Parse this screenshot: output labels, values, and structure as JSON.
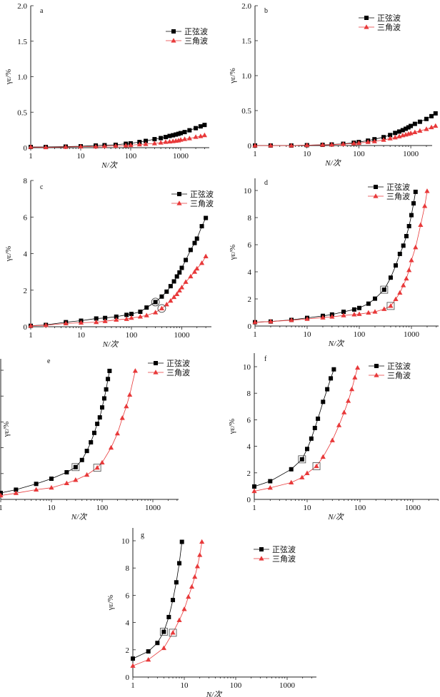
{
  "figure": {
    "legend_sine": "正弦波",
    "legend_triangle": "三角波",
    "xlabel": "N/次",
    "ylabel": "γε/%",
    "colors": {
      "sine": "#000000",
      "triangle": "#e8393a"
    }
  },
  "chart_data": [
    {
      "panel": "a",
      "type": "line",
      "xscale": "log",
      "xlim": [
        1,
        3500
      ],
      "ylim": [
        0,
        2.0
      ],
      "xticks": [
        "1",
        "10",
        "100",
        "1000"
      ],
      "yticks": [
        "0",
        "0.5",
        "1.0",
        "1.5",
        "2.0"
      ],
      "ytick_values": [
        0,
        0.5,
        1,
        1.5,
        2
      ],
      "legend": "top-right",
      "series": [
        {
          "name": "正弦波",
          "x": [
            1,
            2,
            5,
            10,
            20,
            30,
            50,
            80,
            100,
            150,
            200,
            300,
            400,
            500,
            600,
            700,
            800,
            900,
            1000,
            1200,
            1500,
            2000,
            2500,
            3000
          ],
          "y": [
            0.01,
            0.01,
            0.015,
            0.02,
            0.03,
            0.035,
            0.04,
            0.055,
            0.06,
            0.08,
            0.095,
            0.12,
            0.135,
            0.15,
            0.165,
            0.175,
            0.185,
            0.195,
            0.205,
            0.22,
            0.245,
            0.275,
            0.3,
            0.32
          ]
        },
        {
          "name": "三角波",
          "x": [
            1,
            2,
            5,
            10,
            20,
            30,
            50,
            80,
            100,
            150,
            200,
            300,
            400,
            500,
            600,
            700,
            800,
            900,
            1000,
            1200,
            1500,
            2000,
            2500,
            3000
          ],
          "y": [
            0.01,
            0.005,
            0.01,
            0.015,
            0.015,
            0.02,
            0.025,
            0.03,
            0.035,
            0.045,
            0.05,
            0.06,
            0.07,
            0.08,
            0.085,
            0.09,
            0.095,
            0.1,
            0.11,
            0.12,
            0.13,
            0.15,
            0.16,
            0.175
          ]
        }
      ]
    },
    {
      "panel": "b",
      "type": "line",
      "xscale": "log",
      "xlim": [
        1,
        3500
      ],
      "ylim": [
        0,
        2.0
      ],
      "xticks": [
        "1",
        "10",
        "100",
        "1000"
      ],
      "yticks": [
        "0",
        "0.5",
        "1.0",
        "1.5",
        "2.0"
      ],
      "ytick_values": [
        0,
        0.5,
        1,
        1.5,
        2
      ],
      "legend": "top-right",
      "series": [
        {
          "name": "正弦波",
          "x": [
            1,
            2,
            5,
            10,
            20,
            30,
            50,
            80,
            100,
            150,
            200,
            300,
            400,
            500,
            600,
            700,
            800,
            900,
            1000,
            1200,
            1500,
            2000,
            2500,
            3000
          ],
          "y": [
            0,
            0,
            0,
            0.005,
            0.01,
            0.015,
            0.025,
            0.04,
            0.05,
            0.07,
            0.09,
            0.12,
            0.15,
            0.18,
            0.2,
            0.22,
            0.24,
            0.26,
            0.28,
            0.31,
            0.34,
            0.38,
            0.42,
            0.46
          ]
        },
        {
          "name": "三角波",
          "x": [
            1,
            2,
            5,
            10,
            20,
            30,
            50,
            80,
            100,
            150,
            200,
            300,
            400,
            500,
            600,
            700,
            800,
            900,
            1000,
            1200,
            1500,
            2000,
            2500,
            3000
          ],
          "y": [
            0,
            0,
            0,
            0.005,
            0.01,
            0.012,
            0.02,
            0.03,
            0.035,
            0.05,
            0.06,
            0.08,
            0.1,
            0.115,
            0.13,
            0.145,
            0.155,
            0.165,
            0.175,
            0.19,
            0.21,
            0.235,
            0.26,
            0.28
          ]
        }
      ]
    },
    {
      "panel": "c",
      "type": "line",
      "xscale": "log",
      "xlim": [
        1,
        4000
      ],
      "ylim": [
        0,
        8
      ],
      "xticks": [
        "1",
        "10",
        "100",
        "1000"
      ],
      "yticks": [
        "0",
        "2",
        "4",
        "6",
        "8"
      ],
      "ytick_values": [
        0,
        2,
        4,
        6,
        8
      ],
      "legend": "top-right",
      "marker_style": "circle",
      "series": [
        {
          "name": "正弦波",
          "marked_x": 300,
          "x": [
            1,
            2,
            5,
            10,
            20,
            30,
            50,
            80,
            100,
            150,
            200,
            300,
            400,
            500,
            600,
            700,
            800,
            900,
            1000,
            1200,
            1500,
            1800,
            2000,
            2500,
            3000
          ],
          "y": [
            0.05,
            0.1,
            0.25,
            0.33,
            0.45,
            0.48,
            0.55,
            0.65,
            0.7,
            0.82,
            1.05,
            1.35,
            1.65,
            1.92,
            2.22,
            2.48,
            2.75,
            2.97,
            3.22,
            3.65,
            4.2,
            4.58,
            4.82,
            5.5,
            5.95
          ]
        },
        {
          "name": "三角波",
          "marked_x": 400,
          "x": [
            1,
            2,
            5,
            10,
            20,
            30,
            50,
            80,
            100,
            150,
            200,
            300,
            400,
            500,
            600,
            700,
            800,
            900,
            1000,
            1200,
            1500,
            1800,
            2000,
            2500,
            3000
          ],
          "y": [
            0.05,
            0.08,
            0.18,
            0.22,
            0.25,
            0.3,
            0.38,
            0.42,
            0.48,
            0.55,
            0.62,
            0.78,
            1.0,
            1.22,
            1.42,
            1.62,
            1.78,
            1.98,
            2.15,
            2.45,
            2.75,
            3.0,
            3.18,
            3.48,
            3.85
          ]
        }
      ]
    },
    {
      "panel": "d",
      "type": "line",
      "xscale": "log",
      "xlim": [
        1,
        3000
      ],
      "ylim": [
        0,
        11
      ],
      "xticks": [
        "1",
        "10",
        "100",
        "1000"
      ],
      "yticks": [
        "0",
        "2",
        "4",
        "6",
        "8",
        "10"
      ],
      "ytick_values": [
        0,
        2,
        4,
        6,
        8,
        10
      ],
      "legend": "top-right",
      "marker_style": "square",
      "series": [
        {
          "name": "正弦波",
          "marked_x": 300,
          "x": [
            1,
            2,
            5,
            10,
            20,
            30,
            50,
            80,
            100,
            150,
            200,
            300,
            400,
            500,
            600,
            700,
            800,
            900,
            1000,
            1100,
            1200
          ],
          "y": [
            0.28,
            0.33,
            0.45,
            0.6,
            0.75,
            0.85,
            1.05,
            1.22,
            1.33,
            1.65,
            2.02,
            2.68,
            3.57,
            4.47,
            5.32,
            5.93,
            6.63,
            7.37,
            8.18,
            9.05,
            9.9
          ]
        },
        {
          "name": "三角波",
          "marked_x": 400,
          "x": [
            1,
            2,
            5,
            10,
            20,
            30,
            50,
            80,
            100,
            150,
            200,
            300,
            400,
            500,
            600,
            700,
            800,
            900,
            1000,
            1200,
            1500,
            1800,
            2000
          ],
          "y": [
            0.28,
            0.33,
            0.43,
            0.52,
            0.62,
            0.68,
            0.78,
            0.85,
            0.88,
            0.98,
            1.05,
            1.25,
            1.48,
            1.98,
            2.45,
            3.0,
            3.5,
            4.12,
            4.85,
            5.8,
            7.45,
            8.85,
            9.95
          ]
        }
      ]
    },
    {
      "panel": "e",
      "type": "line",
      "xscale": "log",
      "xlim": [
        1,
        3000
      ],
      "ylim": [
        0,
        11
      ],
      "xticks": [
        "1",
        "10",
        "100",
        "1000"
      ],
      "yticks": [
        "0",
        "2",
        "4",
        "6",
        "8",
        "10"
      ],
      "ytick_values": [
        0,
        2,
        4,
        6,
        8,
        10
      ],
      "legend": "top-right",
      "marker_style": "square",
      "series": [
        {
          "name": "正弦波",
          "marked_x": 30,
          "x": [
            1,
            2,
            5,
            10,
            20,
            30,
            40,
            50,
            60,
            70,
            80,
            90,
            100,
            110,
            120,
            130,
            140
          ],
          "y": [
            0.5,
            0.75,
            1.2,
            1.6,
            2.1,
            2.5,
            3.05,
            3.75,
            4.42,
            5.15,
            5.85,
            6.35,
            7.12,
            7.82,
            8.52,
            9.32,
            9.95
          ]
        },
        {
          "name": "三角波",
          "marked_x": 80,
          "x": [
            1,
            2,
            5,
            10,
            20,
            30,
            50,
            80,
            100,
            150,
            200,
            250,
            300,
            350,
            450
          ],
          "y": [
            0.3,
            0.48,
            0.75,
            0.9,
            1.25,
            1.5,
            1.9,
            2.45,
            2.85,
            4.0,
            5.1,
            6.3,
            7.2,
            8.1,
            9.95
          ]
        }
      ]
    },
    {
      "panel": "f",
      "type": "line",
      "xscale": "log",
      "xlim": [
        1,
        3000
      ],
      "ylim": [
        0,
        11
      ],
      "xticks": [
        "1",
        "10",
        "100",
        "1000"
      ],
      "yticks": [
        "0",
        "2",
        "4",
        "6",
        "8",
        "10"
      ],
      "ytick_values": [
        0,
        2,
        4,
        6,
        8,
        10
      ],
      "legend": "top-right",
      "marker_style": "square",
      "series": [
        {
          "name": "正弦波",
          "marked_x": 8,
          "x": [
            1,
            2,
            5,
            8,
            10,
            12,
            14,
            16,
            20,
            24,
            28,
            32
          ],
          "y": [
            0.97,
            1.37,
            2.27,
            3.02,
            3.8,
            4.58,
            5.38,
            6.08,
            7.35,
            8.3,
            9.12,
            9.8
          ]
        },
        {
          "name": "三角波",
          "marked_x": 15,
          "x": [
            1,
            2,
            5,
            8,
            10,
            15,
            20,
            30,
            40,
            50,
            60,
            70,
            80,
            90
          ],
          "y": [
            0.62,
            0.87,
            1.27,
            1.65,
            1.97,
            2.5,
            3.2,
            4.45,
            5.58,
            6.55,
            7.42,
            8.3,
            9.18,
            9.92
          ]
        }
      ]
    },
    {
      "panel": "g",
      "type": "line",
      "xscale": "log",
      "xlim": [
        1,
        3000
      ],
      "ylim": [
        0,
        11
      ],
      "xticks": [
        "1",
        "10",
        "100",
        "1000"
      ],
      "yticks": [
        "0",
        "2",
        "4",
        "6",
        "8",
        "10"
      ],
      "ytick_values": [
        0,
        2,
        4,
        6,
        8,
        10
      ],
      "legend": "top-right",
      "marker_style": "square",
      "series": [
        {
          "name": "正弦波",
          "marked_x": 4,
          "x": [
            1,
            2,
            3,
            4,
            5,
            6,
            7,
            8,
            9
          ],
          "y": [
            1.35,
            1.88,
            2.5,
            3.32,
            4.4,
            5.65,
            6.95,
            8.35,
            9.92
          ]
        },
        {
          "name": "三角波",
          "marked_x": 6,
          "x": [
            1,
            2,
            4,
            6,
            8,
            10,
            12,
            14,
            16,
            18,
            20,
            22
          ],
          "y": [
            0.82,
            1.27,
            2.12,
            3.25,
            4.17,
            4.98,
            5.88,
            6.62,
            7.35,
            8.12,
            8.95,
            9.92
          ]
        }
      ]
    }
  ]
}
